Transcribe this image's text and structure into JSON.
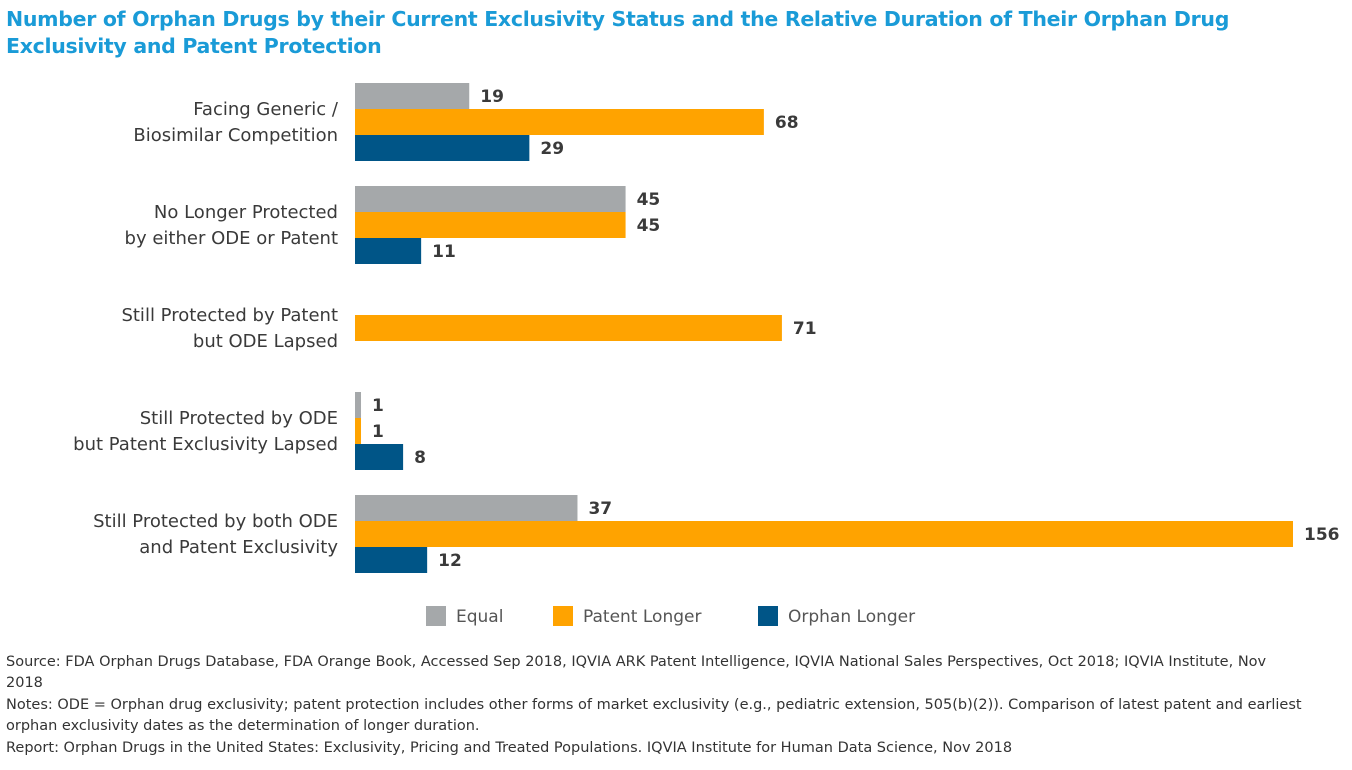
{
  "title": "Number of Orphan Drugs by their Current Exclusivity Status and the Relative Duration of Their Orphan Drug Exclusivity and Patent Protection",
  "chart_data": {
    "type": "bar",
    "orientation": "horizontal",
    "title": "Number of Orphan Drugs by their Current Exclusivity Status and the Relative Duration of Their Orphan Drug Exclusivity and Patent Protection",
    "categories": [
      [
        "Facing Generic /",
        "Biosimilar Competition"
      ],
      [
        "No Longer Protected",
        "by either ODE or Patent"
      ],
      [
        "Still Protected by Patent",
        "but ODE Lapsed"
      ],
      [
        "Still Protected by ODE",
        "but Patent Exclusivity Lapsed"
      ],
      [
        "Still Protected by both ODE",
        "and Patent Exclusivity"
      ]
    ],
    "series": [
      {
        "name": "Equal",
        "color": "#a5a8aa",
        "values": [
          19,
          45,
          null,
          1,
          37
        ]
      },
      {
        "name": "Patent Longer",
        "color": "#ffa300",
        "values": [
          68,
          45,
          71,
          1,
          156
        ]
      },
      {
        "name": "Orphan Longer",
        "color": "#005587",
        "values": [
          29,
          11,
          null,
          8,
          12
        ]
      }
    ],
    "xlim": [
      0,
      156
    ],
    "grid": false,
    "data_labels": true,
    "legend_position": "bottom"
  },
  "notes": {
    "source": "Source: FDA Orphan Drugs Database, FDA Orange Book, Accessed Sep 2018, IQVIA ARK Patent Intelligence, IQVIA National Sales Perspectives, Oct 2018; IQVIA Institute, Nov 2018",
    "notes": "Notes: ODE = Orphan drug exclusivity; patent protection includes other forms of market exclusivity (e.g., pediatric extension, 505(b)(2)). Comparison of latest patent and earliest orphan exclusivity dates as the determination of longer duration.",
    "report": "Report: Orphan Drugs in the United States: Exclusivity, Pricing and Treated Populations. IQVIA Institute for Human Data Science, Nov 2018"
  }
}
